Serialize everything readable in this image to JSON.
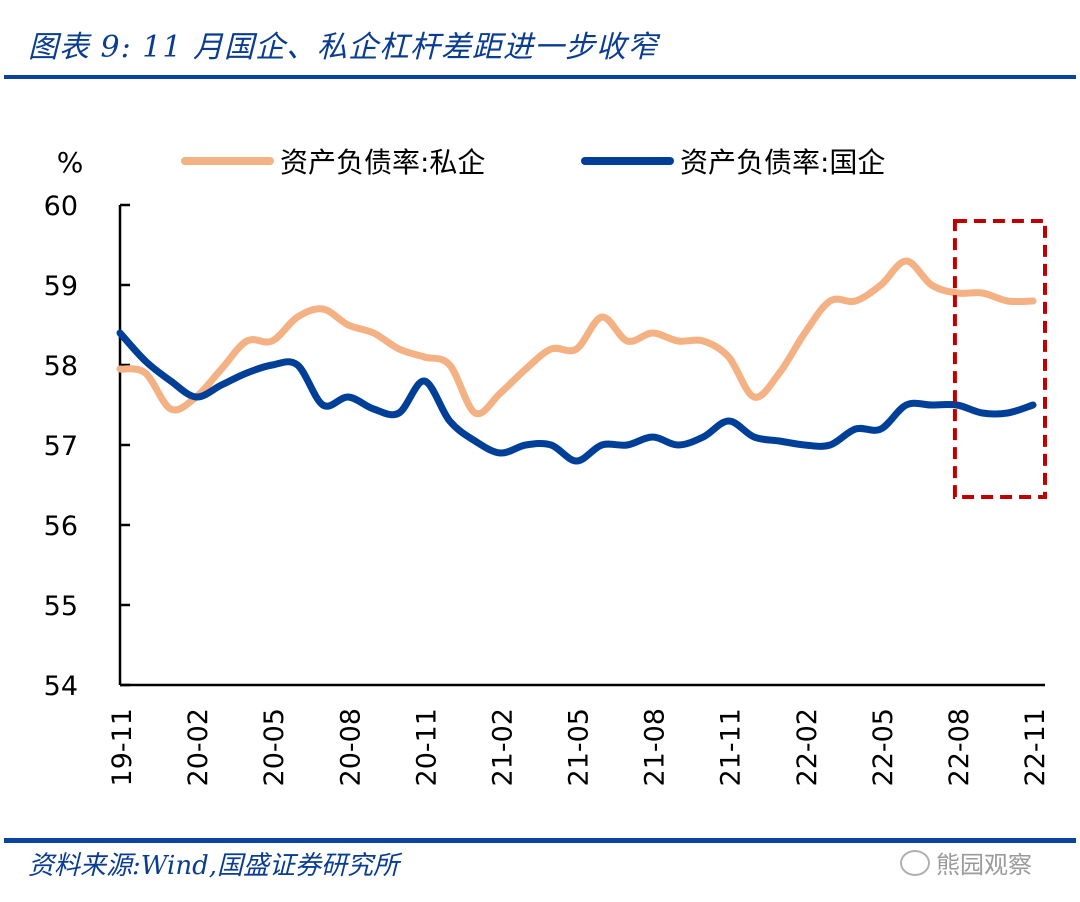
{
  "header": {
    "title": "图表 9:  11 月国企、私企杠杆差距进一步收窄"
  },
  "footer": {
    "source": "资料来源:Wind,国盛证券研究所",
    "watermark": "熊园观察"
  },
  "chart_data": {
    "type": "line",
    "title": "图表 9:  11 月国企、私企杠杆差距进一步收窄",
    "ylabel": "%",
    "xlabel": "",
    "ylim": [
      54,
      60
    ],
    "yticks": [
      "60",
      "59",
      "58",
      "57",
      "56",
      "55",
      "54"
    ],
    "x": [
      "19-11",
      "19-12",
      "20-01",
      "20-02",
      "20-03",
      "20-04",
      "20-05",
      "20-06",
      "20-07",
      "20-08",
      "20-09",
      "20-10",
      "20-11",
      "20-12",
      "21-01",
      "21-02",
      "21-03",
      "21-04",
      "21-05",
      "21-06",
      "21-07",
      "21-08",
      "21-09",
      "21-10",
      "21-11",
      "21-12",
      "22-01",
      "22-02",
      "22-03",
      "22-04",
      "22-05",
      "22-06",
      "22-07",
      "22-08",
      "22-09",
      "22-10",
      "22-11"
    ],
    "xticks": [
      "19-11",
      "20-02",
      "20-05",
      "20-08",
      "20-11",
      "21-02",
      "21-05",
      "21-08",
      "21-11",
      "22-02",
      "22-05",
      "22-08",
      "22-11"
    ],
    "legend_position": "top",
    "grid": false,
    "series": [
      {
        "name": "资产负债率:私企",
        "color": "#f4b183",
        "values": [
          57.95,
          57.9,
          57.45,
          57.6,
          57.95,
          58.3,
          58.3,
          58.6,
          58.7,
          58.5,
          58.4,
          58.2,
          58.1,
          58.0,
          57.4,
          57.65,
          57.95,
          58.2,
          58.2,
          58.6,
          58.3,
          58.4,
          58.3,
          58.3,
          58.1,
          57.6,
          57.9,
          58.4,
          58.8,
          58.8,
          59.0,
          59.3,
          59.0,
          58.9,
          58.9,
          58.8,
          58.8
        ]
      },
      {
        "name": "资产负债率:国企",
        "color": "#003f98",
        "values": [
          58.4,
          58.05,
          57.8,
          57.6,
          57.75,
          57.9,
          58.0,
          58.0,
          57.5,
          57.6,
          57.45,
          57.4,
          57.8,
          57.3,
          57.05,
          56.9,
          57.0,
          57.0,
          56.8,
          57.0,
          57.0,
          57.1,
          57.0,
          57.1,
          57.3,
          57.1,
          57.05,
          57.0,
          57.0,
          57.2,
          57.2,
          57.5,
          57.5,
          57.5,
          57.4,
          57.4,
          57.5
        ]
      }
    ],
    "annotations": [
      {
        "type": "dashed-box",
        "from": "22-08",
        "to": "22-11",
        "color": "#c00000"
      }
    ]
  }
}
